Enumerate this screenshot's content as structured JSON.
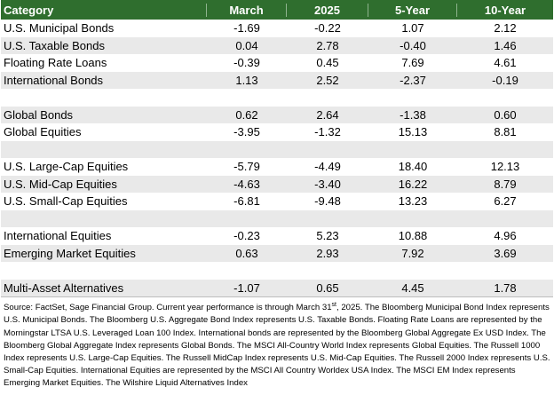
{
  "table": {
    "headers": [
      "Category",
      "March",
      "2025",
      "5-Year",
      "10-Year"
    ],
    "groups": [
      [
        {
          "category": "U.S. Municipal Bonds",
          "march": "-1.69",
          "ytd": "-0.22",
          "five": "1.07",
          "ten": "2.12"
        },
        {
          "category": "U.S. Taxable Bonds",
          "march": "0.04",
          "ytd": "2.78",
          "five": "-0.40",
          "ten": "1.46"
        },
        {
          "category": "Floating Rate Loans",
          "march": "-0.39",
          "ytd": "0.45",
          "five": "7.69",
          "ten": "4.61"
        },
        {
          "category": "International Bonds",
          "march": "1.13",
          "ytd": "2.52",
          "five": "-2.37",
          "ten": "-0.19"
        }
      ],
      [
        {
          "category": "Global Bonds",
          "march": "0.62",
          "ytd": "2.64",
          "five": "-1.38",
          "ten": "0.60"
        },
        {
          "category": "Global Equities",
          "march": "-3.95",
          "ytd": "-1.32",
          "five": "15.13",
          "ten": "8.81"
        }
      ],
      [
        {
          "category": "U.S. Large-Cap Equities",
          "march": "-5.79",
          "ytd": "-4.49",
          "five": "18.40",
          "ten": "12.13"
        },
        {
          "category": "U.S. Mid-Cap Equities",
          "march": "-4.63",
          "ytd": "-3.40",
          "five": "16.22",
          "ten": "8.79"
        },
        {
          "category": "U.S. Small-Cap Equities",
          "march": "-6.81",
          "ytd": "-9.48",
          "five": "13.23",
          "ten": "6.27"
        }
      ],
      [
        {
          "category": "International Equities",
          "march": "-0.23",
          "ytd": "5.23",
          "five": "10.88",
          "ten": "4.96"
        },
        {
          "category": "Emerging Market Equities",
          "march": "0.63",
          "ytd": "2.93",
          "five": "7.92",
          "ten": "3.69"
        }
      ],
      [
        {
          "category": "Multi-Asset Alternatives",
          "march": "-1.07",
          "ytd": "0.65",
          "five": "4.45",
          "ten": "1.78"
        }
      ]
    ]
  },
  "source": {
    "before_sup": "Source: FactSet, Sage Financial Group. Current year performance is through March 31",
    "sup": "st",
    "after_sup": ", 2025. The Bloomberg Municipal Bond Index represents U.S. Municipal Bonds. The Bloomberg U.S. Aggregate Bond Index represents U.S. Taxable Bonds. Floating Rate Loans are represented by the Morningstar LTSA U.S. Leveraged Loan 100 Index. International bonds are represented by the Bloomberg Global Aggregate Ex USD Index. The Bloomberg Global Aggregate Index represents Global Bonds. The MSCI All-Country World Index represents Global Equities. The Russell 1000 Index represents U.S. Large-Cap Equities. The Russell MidCap Index represents U.S. Mid-Cap Equities. The Russell 2000 Index represents U.S. Small-Cap Equities. International Equities are represented by the MSCI All Country Worldex USA Index. The MSCI EM Index represents Emerging Market Equities. The Wilshire Liquid Alternatives Index"
  }
}
